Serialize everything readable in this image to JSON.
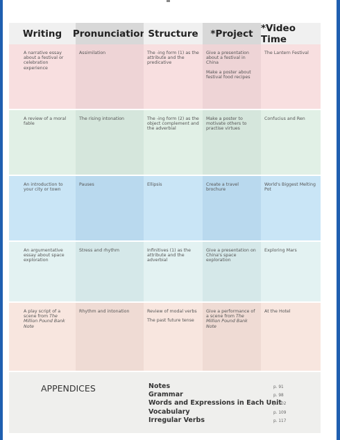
{
  "headers": [
    "Writing",
    "Pronunciation",
    "Structure",
    "*Project",
    "*Video Time"
  ],
  "rows": [
    {
      "writing": [
        "A narrative essay about a festival or celebration experience"
      ],
      "pronunciation": [
        "Assimilation"
      ],
      "structure": [
        "The -ing form (1) as the attribute and the predicative"
      ],
      "project": [
        "Give a presentation about a festival in China",
        "Make a poster about festival food recipes"
      ],
      "video": [
        "The Lantern Festival"
      ]
    },
    {
      "writing": [
        "A review of a moral fable"
      ],
      "pronunciation": [
        "The rising intonation"
      ],
      "structure": [
        "The -ing form (2) as the object complement and the adverbial"
      ],
      "project": [
        "Make a poster to motivate others to practise virtues"
      ],
      "video": [
        "Confucius and Ren"
      ]
    },
    {
      "writing": [
        "An introduction to your city or town"
      ],
      "pronunciation": [
        "Pauses"
      ],
      "structure": [
        "Ellipsis"
      ],
      "project": [
        "Create a travel brochure"
      ],
      "video": [
        "World's Biggest Melting Pot"
      ]
    },
    {
      "writing": [
        "An argumentative essay about space exploration"
      ],
      "pronunciation": [
        "Stress and rhythm"
      ],
      "structure": [
        "Infinitives (1) as the attribute and the adverbial"
      ],
      "project": [
        "Give a presentation on China's space exploration"
      ],
      "video": [
        "Exploring Mars"
      ]
    },
    {
      "writing": [
        "A play script of a scene from ",
        "The Million Pound Bank Note"
      ],
      "pronunciation": [
        "Rhythm and intonation"
      ],
      "structure": [
        "Review of modal verbs",
        "The past future tense"
      ],
      "project": [
        "Give a performance of a scene from ",
        "The Million Pound Bank Note"
      ],
      "video": [
        "At the Hotel"
      ]
    }
  ],
  "appendices": {
    "title": "APPENDICES",
    "items": [
      {
        "label": "Notes",
        "page": "p. 91"
      },
      {
        "label": "Grammar",
        "page": "p. 98"
      },
      {
        "label": "Words and Expressions in Each Unit",
        "page": "p. 102"
      },
      {
        "label": "Vocabulary",
        "page": "p. 109"
      },
      {
        "label": "Irregular Verbs",
        "page": "p. 117"
      }
    ]
  },
  "colors": {
    "header_light": "#f0f0f0",
    "header_dark": "#d8d8d8",
    "row_colors": [
      "#f8dfe0",
      "#e1f0e6",
      "#c9e5f6",
      "#e3f2f2",
      "#f8e6df"
    ],
    "row_colors_dark": [
      "#eed4d6",
      "#d5e6dc",
      "#b9d9ee",
      "#d5e8e9",
      "#efdbd4"
    ],
    "border_blue": "#1f5fb0"
  }
}
